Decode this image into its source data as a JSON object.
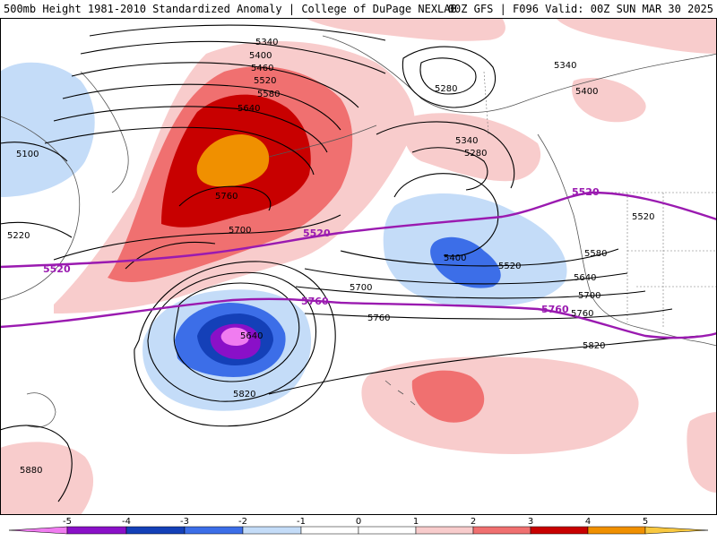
{
  "header": {
    "title": "500mb Height 1981-2010 Standardized Anomaly | College of DuPage NEXLAB",
    "run": "00Z GFS | F096 Valid: 00Z SUN MAR 30 2025"
  },
  "colors": {
    "neg5": "#f07cf0",
    "neg4": "#8a10c8",
    "neg3": "#1440b8",
    "neg2": "#3c6ee8",
    "neg1": "#c4dcf8",
    "pos1": "#f8cccc",
    "pos2": "#f07070",
    "pos3": "#c80000",
    "pos4": "#f09000",
    "contour": "#000000",
    "highlight": "#9a1ab0"
  },
  "contour_labels": [
    "5340",
    "5400",
    "5460",
    "5520",
    "5580",
    "5640",
    "5760",
    "5700",
    "5280",
    "5340",
    "5280",
    "5400",
    "5520",
    "5580",
    "5640",
    "5700",
    "5760",
    "5820",
    "5340",
    "5400",
    "5520",
    "5100",
    "5220",
    "5640",
    "5700",
    "5760",
    "5820",
    "5880",
    "5520",
    "5400"
  ],
  "highlight_labels": [
    "5520",
    "5520",
    "5520",
    "5760",
    "5760"
  ],
  "colorbar": {
    "ticks": [
      "-5",
      "-4",
      "-3",
      "-2",
      "-1",
      "0",
      "1",
      "2",
      "3",
      "4",
      "5"
    ]
  }
}
